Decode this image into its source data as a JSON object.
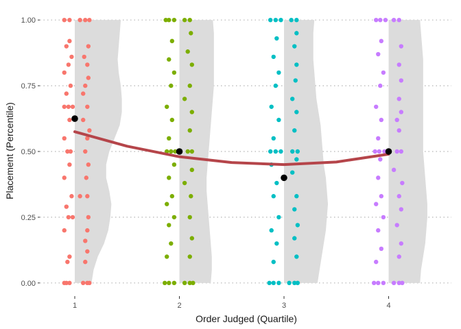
{
  "chart_data": {
    "type": "scatter",
    "title": "",
    "xlabel": "Order Judged (Quartile)",
    "ylabel": "Placement (Percentile)",
    "x_ticks": [
      "1",
      "2",
      "3",
      "4"
    ],
    "y_ticks": [
      "0.00",
      "0.25",
      "0.50",
      "0.75",
      "1.00"
    ],
    "xlim": [
      0.6,
      4.6
    ],
    "ylim": [
      -0.05,
      1.05
    ],
    "grid": "horizontal dotted",
    "legend": "none",
    "groups": [
      {
        "x": 1,
        "color": "#f8766d",
        "points": [
          [
            0.9,
            0.0
          ],
          [
            0.92,
            0.0
          ],
          [
            0.95,
            0.0
          ],
          [
            1.08,
            0.0
          ],
          [
            1.12,
            0.0
          ],
          [
            1.14,
            0.0
          ],
          [
            0.93,
            0.08
          ],
          [
            1.1,
            0.08
          ],
          [
            0.95,
            0.1
          ],
          [
            1.12,
            0.12
          ],
          [
            1.1,
            0.16
          ],
          [
            0.9,
            0.2
          ],
          [
            1.12,
            0.2
          ],
          [
            0.94,
            0.25
          ],
          [
            0.98,
            0.25
          ],
          [
            1.13,
            0.25
          ],
          [
            0.92,
            0.29
          ],
          [
            0.97,
            0.33
          ],
          [
            1.05,
            0.33
          ],
          [
            1.12,
            0.33
          ],
          [
            0.9,
            0.4
          ],
          [
            1.11,
            0.4
          ],
          [
            0.95,
            0.45
          ],
          [
            1.13,
            0.45
          ],
          [
            0.93,
            0.5
          ],
          [
            0.96,
            0.5
          ],
          [
            1.1,
            0.5
          ],
          [
            0.9,
            0.55
          ],
          [
            1.12,
            0.55
          ],
          [
            1.14,
            0.58
          ],
          [
            0.95,
            0.62
          ],
          [
            1.08,
            0.62
          ],
          [
            0.9,
            0.67
          ],
          [
            0.94,
            0.67
          ],
          [
            0.98,
            0.67
          ],
          [
            1.12,
            0.67
          ],
          [
            0.92,
            0.72
          ],
          [
            1.08,
            0.72
          ],
          [
            0.96,
            0.75
          ],
          [
            1.1,
            0.75
          ],
          [
            1.13,
            0.78
          ],
          [
            0.9,
            0.8
          ],
          [
            0.94,
            0.83
          ],
          [
            1.12,
            0.83
          ],
          [
            0.97,
            0.86
          ],
          [
            1.09,
            0.86
          ],
          [
            0.92,
            0.9
          ],
          [
            1.13,
            0.9
          ],
          [
            0.95,
            0.92
          ],
          [
            0.9,
            1.0
          ],
          [
            0.95,
            1.0
          ],
          [
            1.05,
            1.0
          ],
          [
            1.1,
            1.0
          ],
          [
            1.14,
            1.0
          ]
        ]
      },
      {
        "x": 2,
        "color": "#7cae00",
        "points": [
          [
            1.86,
            0.0
          ],
          [
            1.9,
            0.0
          ],
          [
            1.95,
            0.0
          ],
          [
            2.05,
            0.0
          ],
          [
            2.1,
            0.0
          ],
          [
            2.13,
            0.0
          ],
          [
            1.88,
            0.1
          ],
          [
            2.1,
            0.1
          ],
          [
            1.92,
            0.15
          ],
          [
            2.12,
            0.17
          ],
          [
            1.9,
            0.22
          ],
          [
            2.1,
            0.25
          ],
          [
            1.95,
            0.25
          ],
          [
            1.88,
            0.3
          ],
          [
            2.11,
            0.33
          ],
          [
            1.93,
            0.33
          ],
          [
            2.05,
            0.38
          ],
          [
            1.9,
            0.4
          ],
          [
            2.12,
            0.43
          ],
          [
            1.95,
            0.45
          ],
          [
            1.88,
            0.5
          ],
          [
            1.92,
            0.5
          ],
          [
            1.96,
            0.5
          ],
          [
            2.08,
            0.5
          ],
          [
            2.12,
            0.5
          ],
          [
            1.9,
            0.55
          ],
          [
            2.1,
            0.58
          ],
          [
            1.93,
            0.62
          ],
          [
            2.12,
            0.65
          ],
          [
            1.88,
            0.67
          ],
          [
            2.05,
            0.7
          ],
          [
            1.92,
            0.75
          ],
          [
            2.1,
            0.75
          ],
          [
            1.95,
            0.8
          ],
          [
            2.12,
            0.83
          ],
          [
            1.9,
            0.85
          ],
          [
            2.08,
            0.88
          ],
          [
            1.93,
            0.92
          ],
          [
            2.11,
            0.95
          ],
          [
            1.87,
            1.0
          ],
          [
            1.9,
            1.0
          ],
          [
            1.95,
            1.0
          ],
          [
            2.05,
            1.0
          ],
          [
            2.1,
            1.0
          ]
        ]
      },
      {
        "x": 3,
        "color": "#00bfc4",
        "points": [
          [
            2.86,
            0.0
          ],
          [
            2.9,
            0.0
          ],
          [
            2.95,
            0.0
          ],
          [
            3.05,
            0.0
          ],
          [
            3.1,
            0.0
          ],
          [
            3.13,
            0.0
          ],
          [
            2.9,
            0.08
          ],
          [
            3.12,
            0.1
          ],
          [
            2.93,
            0.15
          ],
          [
            3.1,
            0.17
          ],
          [
            2.88,
            0.2
          ],
          [
            3.13,
            0.22
          ],
          [
            2.95,
            0.25
          ],
          [
            3.1,
            0.28
          ],
          [
            2.9,
            0.33
          ],
          [
            3.12,
            0.33
          ],
          [
            2.93,
            0.38
          ],
          [
            3.08,
            0.42
          ],
          [
            2.88,
            0.45
          ],
          [
            3.12,
            0.47
          ],
          [
            2.87,
            0.5
          ],
          [
            2.92,
            0.5
          ],
          [
            2.97,
            0.5
          ],
          [
            3.08,
            0.5
          ],
          [
            3.13,
            0.5
          ],
          [
            2.9,
            0.55
          ],
          [
            3.1,
            0.58
          ],
          [
            2.95,
            0.62
          ],
          [
            3.12,
            0.65
          ],
          [
            2.88,
            0.67
          ],
          [
            3.08,
            0.7
          ],
          [
            2.92,
            0.75
          ],
          [
            3.11,
            0.77
          ],
          [
            2.95,
            0.8
          ],
          [
            3.12,
            0.83
          ],
          [
            2.9,
            0.86
          ],
          [
            3.1,
            0.9
          ],
          [
            2.93,
            0.93
          ],
          [
            3.12,
            0.95
          ],
          [
            2.87,
            1.0
          ],
          [
            2.92,
            1.0
          ],
          [
            2.97,
            1.0
          ],
          [
            3.07,
            1.0
          ],
          [
            3.12,
            1.0
          ]
        ]
      },
      {
        "x": 4,
        "color": "#c77cff",
        "points": [
          [
            3.86,
            0.0
          ],
          [
            3.9,
            0.0
          ],
          [
            3.95,
            0.0
          ],
          [
            4.05,
            0.0
          ],
          [
            4.1,
            0.0
          ],
          [
            4.13,
            0.0
          ],
          [
            3.88,
            0.08
          ],
          [
            4.1,
            0.1
          ],
          [
            3.93,
            0.13
          ],
          [
            4.12,
            0.15
          ],
          [
            3.9,
            0.2
          ],
          [
            4.08,
            0.22
          ],
          [
            3.95,
            0.25
          ],
          [
            4.12,
            0.28
          ],
          [
            3.88,
            0.3
          ],
          [
            3.93,
            0.33
          ],
          [
            4.1,
            0.33
          ],
          [
            4.13,
            0.38
          ],
          [
            3.9,
            0.4
          ],
          [
            4.05,
            0.43
          ],
          [
            3.92,
            0.47
          ],
          [
            3.87,
            0.5
          ],
          [
            3.91,
            0.5
          ],
          [
            3.96,
            0.5
          ],
          [
            4.08,
            0.5
          ],
          [
            4.12,
            0.5
          ],
          [
            3.9,
            0.55
          ],
          [
            4.1,
            0.58
          ],
          [
            3.93,
            0.62
          ],
          [
            4.08,
            0.62
          ],
          [
            4.12,
            0.65
          ],
          [
            3.88,
            0.67
          ],
          [
            4.1,
            0.7
          ],
          [
            3.92,
            0.75
          ],
          [
            4.12,
            0.77
          ],
          [
            3.95,
            0.8
          ],
          [
            4.1,
            0.83
          ],
          [
            3.9,
            0.87
          ],
          [
            4.12,
            0.9
          ],
          [
            3.93,
            0.92
          ],
          [
            3.88,
            1.0
          ],
          [
            3.92,
            1.0
          ],
          [
            3.97,
            1.0
          ],
          [
            4.05,
            1.0
          ],
          [
            4.1,
            1.0
          ]
        ]
      }
    ],
    "means": [
      {
        "x": 1,
        "y": 0.625
      },
      {
        "x": 2,
        "y": 0.5
      },
      {
        "x": 3,
        "y": 0.4
      },
      {
        "x": 4,
        "y": 0.5
      }
    ],
    "fit_curve": {
      "color": "#b5454a",
      "points": [
        [
          1.0,
          0.575
        ],
        [
          1.5,
          0.52
        ],
        [
          2.0,
          0.48
        ],
        [
          2.5,
          0.458
        ],
        [
          3.0,
          0.45
        ],
        [
          3.5,
          0.46
        ],
        [
          4.0,
          0.49
        ]
      ]
    },
    "density_profiles": {
      "color": "#dcdcdc",
      "max_width": 0.45,
      "y": [
        0.0,
        0.05,
        0.1,
        0.15,
        0.2,
        0.25,
        0.3,
        0.35,
        0.4,
        0.45,
        0.5,
        0.55,
        0.6,
        0.65,
        0.7,
        0.75,
        0.8,
        0.85,
        0.9,
        0.95,
        1.0
      ],
      "widths": [
        [
          0.16,
          0.18,
          0.22,
          0.28,
          0.32,
          0.34,
          0.35,
          0.33,
          0.3,
          0.3,
          0.33,
          0.38,
          0.43,
          0.45,
          0.45,
          0.44,
          0.42,
          0.41,
          0.42,
          0.43,
          0.44
        ],
        [
          0.3,
          0.31,
          0.31,
          0.3,
          0.29,
          0.28,
          0.27,
          0.26,
          0.26,
          0.27,
          0.28,
          0.29,
          0.3,
          0.31,
          0.32,
          0.33,
          0.33,
          0.33,
          0.33,
          0.33,
          0.32
        ],
        [
          0.32,
          0.34,
          0.36,
          0.38,
          0.4,
          0.41,
          0.42,
          0.41,
          0.4,
          0.38,
          0.37,
          0.36,
          0.35,
          0.33,
          0.31,
          0.3,
          0.29,
          0.28,
          0.28,
          0.28,
          0.29
        ],
        [
          0.3,
          0.31,
          0.33,
          0.35,
          0.36,
          0.37,
          0.37,
          0.36,
          0.35,
          0.34,
          0.33,
          0.33,
          0.33,
          0.33,
          0.33,
          0.33,
          0.33,
          0.33,
          0.32,
          0.31,
          0.3
        ]
      ]
    }
  }
}
